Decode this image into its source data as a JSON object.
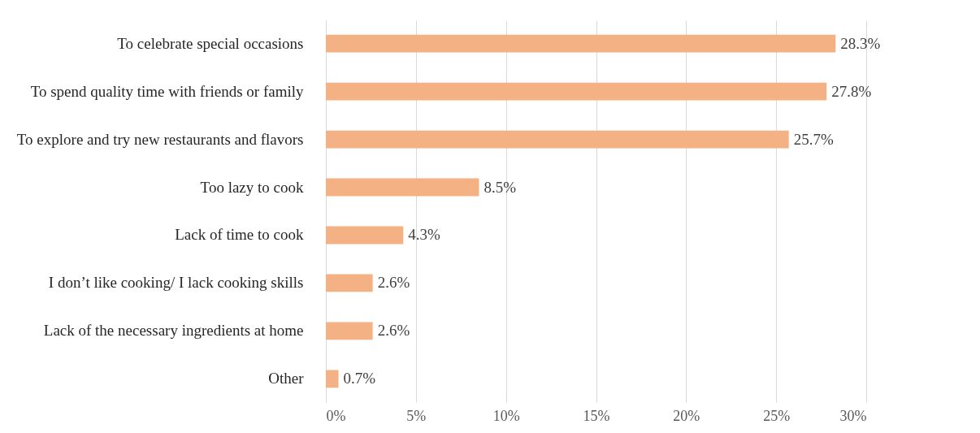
{
  "chart_data": {
    "type": "bar",
    "orientation": "horizontal",
    "categories": [
      "To celebrate special occasions",
      "To spend quality time with friends or family",
      "To explore and try new restaurants and flavors",
      "Too lazy to cook",
      "Lack of time to cook",
      "I don’t like cooking/ I lack cooking skills",
      "Lack of the necessary ingredients at home",
      "Other"
    ],
    "values": [
      28.3,
      27.8,
      25.7,
      8.5,
      4.3,
      2.6,
      2.6,
      0.7
    ],
    "value_labels": [
      "28.3%",
      "27.8%",
      "25.7%",
      "8.5%",
      "4.3%",
      "2.6%",
      "2.6%",
      "0.7%"
    ],
    "color": "#f4b183",
    "xlim": [
      0,
      30
    ],
    "xticks": [
      {
        "value": 0,
        "label": "0%"
      },
      {
        "value": 5,
        "label": "5%"
      },
      {
        "value": 10,
        "label": "10%"
      },
      {
        "value": 15,
        "label": "15%"
      },
      {
        "value": 20,
        "label": "20%"
      },
      {
        "value": 25,
        "label": "25%"
      },
      {
        "value": 30,
        "label": "30%"
      }
    ],
    "grid": "x"
  }
}
